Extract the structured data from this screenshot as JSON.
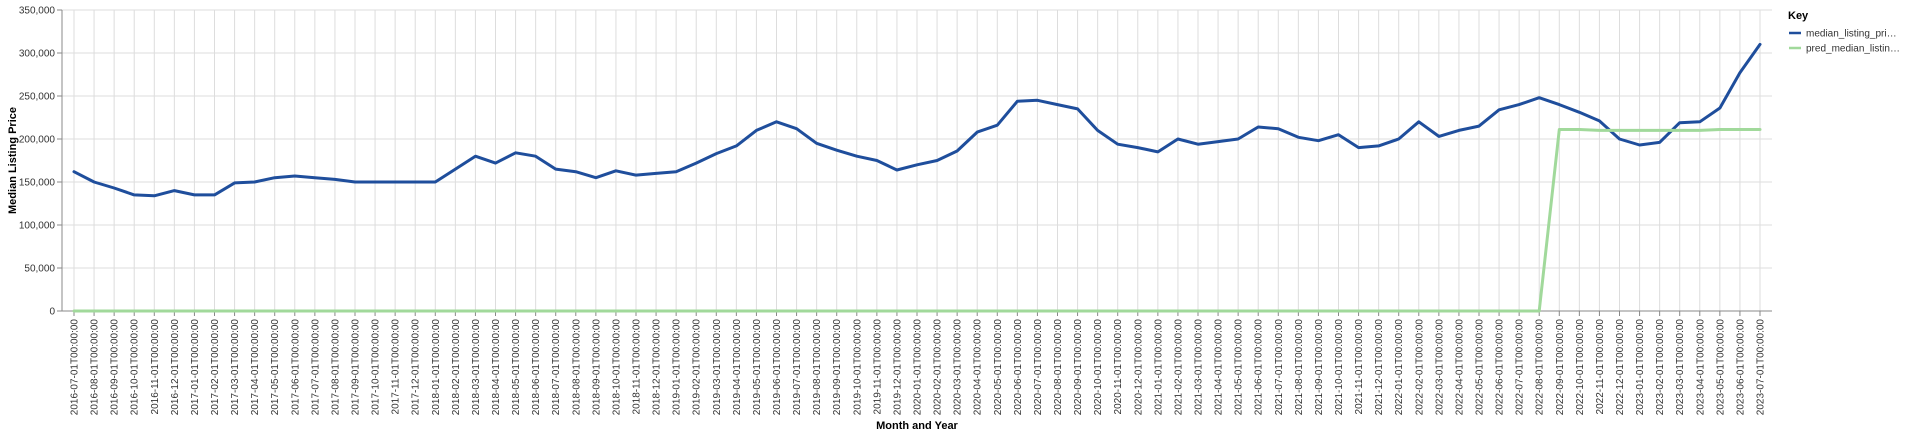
{
  "chart_data": {
    "type": "line",
    "xlabel": "Month and Year",
    "ylabel": "Median Listing Price",
    "ylim": [
      0,
      350000
    ],
    "yticks": [
      "0",
      "50,000",
      "100,000",
      "150,000",
      "200,000",
      "250,000",
      "300,000",
      "350,000"
    ],
    "grid": true,
    "legend": {
      "title": "Key",
      "position": "top-right",
      "entries": [
        "median_listing_pri…",
        "pred_median_listin…"
      ]
    },
    "x": [
      "2016-07-01T00:00:00",
      "2016-08-01T00:00:00",
      "2016-09-01T00:00:00",
      "2016-10-01T00:00:00",
      "2016-11-01T00:00:00",
      "2016-12-01T00:00:00",
      "2017-01-01T00:00:00",
      "2017-02-01T00:00:00",
      "2017-03-01T00:00:00",
      "2017-04-01T00:00:00",
      "2017-05-01T00:00:00",
      "2017-06-01T00:00:00",
      "2017-07-01T00:00:00",
      "2017-08-01T00:00:00",
      "2017-09-01T00:00:00",
      "2017-10-01T00:00:00",
      "2017-11-01T00:00:00",
      "2017-12-01T00:00:00",
      "2018-01-01T00:00:00",
      "2018-02-01T00:00:00",
      "2018-03-01T00:00:00",
      "2018-04-01T00:00:00",
      "2018-05-01T00:00:00",
      "2018-06-01T00:00:00",
      "2018-07-01T00:00:00",
      "2018-08-01T00:00:00",
      "2018-09-01T00:00:00",
      "2018-10-01T00:00:00",
      "2018-11-01T00:00:00",
      "2018-12-01T00:00:00",
      "2019-01-01T00:00:00",
      "2019-02-01T00:00:00",
      "2019-03-01T00:00:00",
      "2019-04-01T00:00:00",
      "2019-05-01T00:00:00",
      "2019-06-01T00:00:00",
      "2019-07-01T00:00:00",
      "2019-08-01T00:00:00",
      "2019-09-01T00:00:00",
      "2019-10-01T00:00:00",
      "2019-11-01T00:00:00",
      "2019-12-01T00:00:00",
      "2020-01-01T00:00:00",
      "2020-02-01T00:00:00",
      "2020-03-01T00:00:00",
      "2020-04-01T00:00:00",
      "2020-05-01T00:00:00",
      "2020-06-01T00:00:00",
      "2020-07-01T00:00:00",
      "2020-08-01T00:00:00",
      "2020-09-01T00:00:00",
      "2020-10-01T00:00:00",
      "2020-11-01T00:00:00",
      "2020-12-01T00:00:00",
      "2021-01-01T00:00:00",
      "2021-02-01T00:00:00",
      "2021-03-01T00:00:00",
      "2021-04-01T00:00:00",
      "2021-05-01T00:00:00",
      "2021-06-01T00:00:00",
      "2021-07-01T00:00:00",
      "2021-08-01T00:00:00",
      "2021-09-01T00:00:00",
      "2021-10-01T00:00:00",
      "2021-11-01T00:00:00",
      "2021-12-01T00:00:00",
      "2022-01-01T00:00:00",
      "2022-02-01T00:00:00",
      "2022-03-01T00:00:00",
      "2022-04-01T00:00:00",
      "2022-05-01T00:00:00",
      "2022-06-01T00:00:00",
      "2022-07-01T00:00:00",
      "2022-08-01T00:00:00",
      "2022-09-01T00:00:00",
      "2022-10-01T00:00:00",
      "2022-11-01T00:00:00",
      "2022-12-01T00:00:00",
      "2023-01-01T00:00:00",
      "2023-02-01T00:00:00",
      "2023-03-01T00:00:00",
      "2023-04-01T00:00:00",
      "2023-05-01T00:00:00",
      "2023-06-01T00:00:00",
      "2023-07-01T00:00:00"
    ],
    "series": [
      {
        "name": "median_listing_pri…",
        "color": "#1f4e9c",
        "values": [
          162000,
          150000,
          143000,
          135000,
          134000,
          140000,
          135000,
          135000,
          149000,
          150000,
          155000,
          157000,
          155000,
          153000,
          150000,
          150000,
          150000,
          150000,
          150000,
          165000,
          180000,
          172000,
          184000,
          180000,
          165000,
          162000,
          155000,
          163000,
          158000,
          160000,
          162000,
          172000,
          183000,
          192000,
          210000,
          220000,
          212000,
          195000,
          187000,
          180000,
          175000,
          164000,
          170000,
          175000,
          186000,
          208000,
          216000,
          244000,
          245000,
          240000,
          235000,
          210000,
          194000,
          190000,
          185000,
          200000,
          194000,
          197000,
          200000,
          214000,
          212000,
          202000,
          198000,
          205000,
          190000,
          192000,
          200000,
          220000,
          203000,
          210000,
          215000,
          234000,
          240000,
          248000,
          240000,
          231000,
          221000,
          200000,
          193000,
          196000,
          219000,
          220000,
          236000,
          277000,
          310000
        ]
      },
      {
        "name": "pred_median_listin…",
        "color": "#a1d99b",
        "values": [
          0,
          0,
          0,
          0,
          0,
          0,
          0,
          0,
          0,
          0,
          0,
          0,
          0,
          0,
          0,
          0,
          0,
          0,
          0,
          0,
          0,
          0,
          0,
          0,
          0,
          0,
          0,
          0,
          0,
          0,
          0,
          0,
          0,
          0,
          0,
          0,
          0,
          0,
          0,
          0,
          0,
          0,
          0,
          0,
          0,
          0,
          0,
          0,
          0,
          0,
          0,
          0,
          0,
          0,
          0,
          0,
          0,
          0,
          0,
          0,
          0,
          0,
          0,
          0,
          0,
          0,
          0,
          0,
          0,
          0,
          0,
          0,
          0,
          0,
          211000,
          211000,
          210000,
          210000,
          210000,
          210000,
          210000,
          210000,
          211000,
          211000,
          211000
        ]
      }
    ]
  }
}
